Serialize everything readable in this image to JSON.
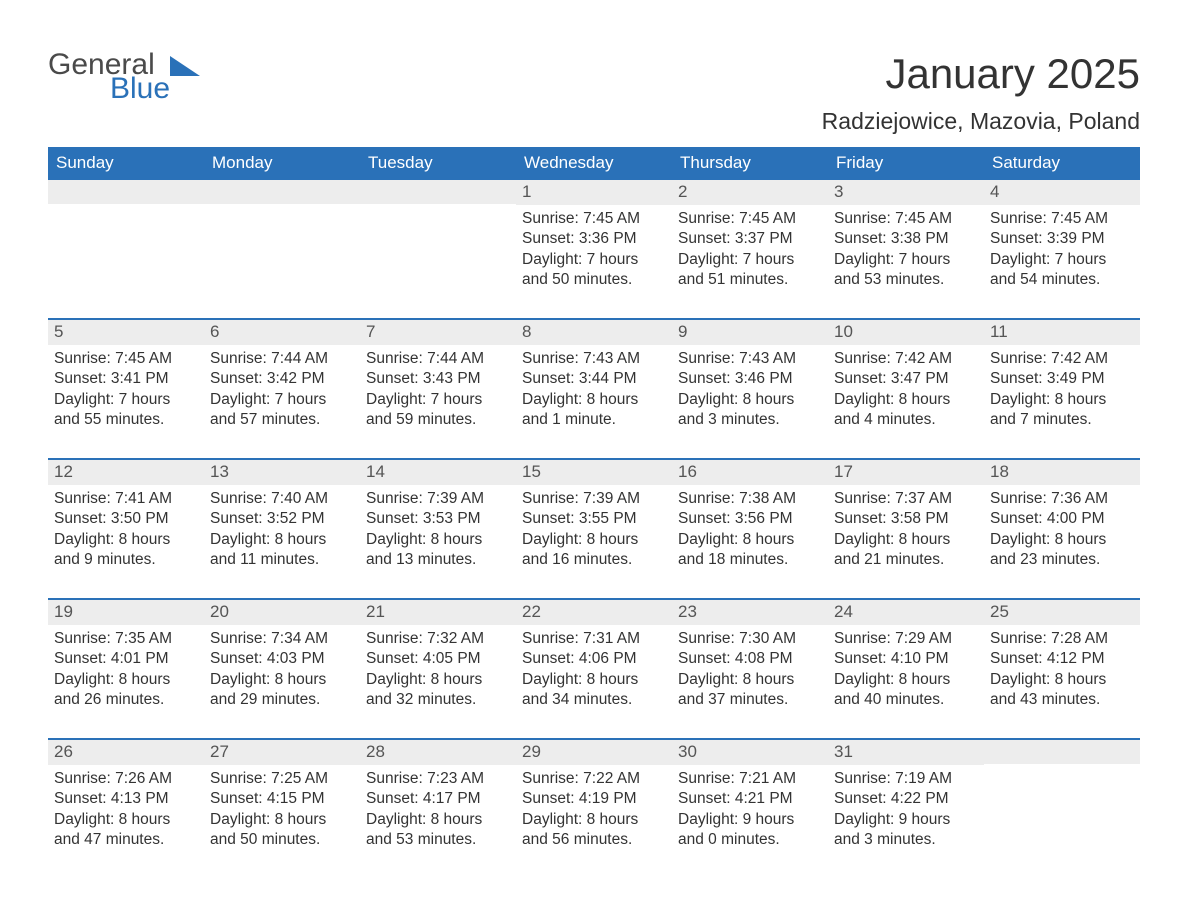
{
  "brand": {
    "general": "General",
    "blue": "Blue",
    "logo_color": "#2a71b8",
    "logo_text_color": "#4a4a4a"
  },
  "header": {
    "title": "January 2025",
    "location": "Radziejowice, Mazovia, Poland",
    "title_color": "#333333",
    "title_fontsize": 42,
    "location_fontsize": 23
  },
  "calendar": {
    "type": "table",
    "header_bg": "#2a71b8",
    "header_fg": "#ffffff",
    "daynum_bg": "#ededed",
    "daynum_fg": "#555555",
    "week_separator_color": "#2a71b8",
    "body_text_color": "#333333",
    "background_color": "#ffffff",
    "columns": [
      "Sunday",
      "Monday",
      "Tuesday",
      "Wednesday",
      "Thursday",
      "Friday",
      "Saturday"
    ],
    "weeks": [
      [
        {
          "day": "",
          "sunrise": "",
          "sunset": "",
          "daylight": ""
        },
        {
          "day": "",
          "sunrise": "",
          "sunset": "",
          "daylight": ""
        },
        {
          "day": "",
          "sunrise": "",
          "sunset": "",
          "daylight": ""
        },
        {
          "day": "1",
          "sunrise": "Sunrise: 7:45 AM",
          "sunset": "Sunset: 3:36 PM",
          "daylight": "Daylight: 7 hours and 50 minutes."
        },
        {
          "day": "2",
          "sunrise": "Sunrise: 7:45 AM",
          "sunset": "Sunset: 3:37 PM",
          "daylight": "Daylight: 7 hours and 51 minutes."
        },
        {
          "day": "3",
          "sunrise": "Sunrise: 7:45 AM",
          "sunset": "Sunset: 3:38 PM",
          "daylight": "Daylight: 7 hours and 53 minutes."
        },
        {
          "day": "4",
          "sunrise": "Sunrise: 7:45 AM",
          "sunset": "Sunset: 3:39 PM",
          "daylight": "Daylight: 7 hours and 54 minutes."
        }
      ],
      [
        {
          "day": "5",
          "sunrise": "Sunrise: 7:45 AM",
          "sunset": "Sunset: 3:41 PM",
          "daylight": "Daylight: 7 hours and 55 minutes."
        },
        {
          "day": "6",
          "sunrise": "Sunrise: 7:44 AM",
          "sunset": "Sunset: 3:42 PM",
          "daylight": "Daylight: 7 hours and 57 minutes."
        },
        {
          "day": "7",
          "sunrise": "Sunrise: 7:44 AM",
          "sunset": "Sunset: 3:43 PM",
          "daylight": "Daylight: 7 hours and 59 minutes."
        },
        {
          "day": "8",
          "sunrise": "Sunrise: 7:43 AM",
          "sunset": "Sunset: 3:44 PM",
          "daylight": "Daylight: 8 hours and 1 minute."
        },
        {
          "day": "9",
          "sunrise": "Sunrise: 7:43 AM",
          "sunset": "Sunset: 3:46 PM",
          "daylight": "Daylight: 8 hours and 3 minutes."
        },
        {
          "day": "10",
          "sunrise": "Sunrise: 7:42 AM",
          "sunset": "Sunset: 3:47 PM",
          "daylight": "Daylight: 8 hours and 4 minutes."
        },
        {
          "day": "11",
          "sunrise": "Sunrise: 7:42 AM",
          "sunset": "Sunset: 3:49 PM",
          "daylight": "Daylight: 8 hours and 7 minutes."
        }
      ],
      [
        {
          "day": "12",
          "sunrise": "Sunrise: 7:41 AM",
          "sunset": "Sunset: 3:50 PM",
          "daylight": "Daylight: 8 hours and 9 minutes."
        },
        {
          "day": "13",
          "sunrise": "Sunrise: 7:40 AM",
          "sunset": "Sunset: 3:52 PM",
          "daylight": "Daylight: 8 hours and 11 minutes."
        },
        {
          "day": "14",
          "sunrise": "Sunrise: 7:39 AM",
          "sunset": "Sunset: 3:53 PM",
          "daylight": "Daylight: 8 hours and 13 minutes."
        },
        {
          "day": "15",
          "sunrise": "Sunrise: 7:39 AM",
          "sunset": "Sunset: 3:55 PM",
          "daylight": "Daylight: 8 hours and 16 minutes."
        },
        {
          "day": "16",
          "sunrise": "Sunrise: 7:38 AM",
          "sunset": "Sunset: 3:56 PM",
          "daylight": "Daylight: 8 hours and 18 minutes."
        },
        {
          "day": "17",
          "sunrise": "Sunrise: 7:37 AM",
          "sunset": "Sunset: 3:58 PM",
          "daylight": "Daylight: 8 hours and 21 minutes."
        },
        {
          "day": "18",
          "sunrise": "Sunrise: 7:36 AM",
          "sunset": "Sunset: 4:00 PM",
          "daylight": "Daylight: 8 hours and 23 minutes."
        }
      ],
      [
        {
          "day": "19",
          "sunrise": "Sunrise: 7:35 AM",
          "sunset": "Sunset: 4:01 PM",
          "daylight": "Daylight: 8 hours and 26 minutes."
        },
        {
          "day": "20",
          "sunrise": "Sunrise: 7:34 AM",
          "sunset": "Sunset: 4:03 PM",
          "daylight": "Daylight: 8 hours and 29 minutes."
        },
        {
          "day": "21",
          "sunrise": "Sunrise: 7:32 AM",
          "sunset": "Sunset: 4:05 PM",
          "daylight": "Daylight: 8 hours and 32 minutes."
        },
        {
          "day": "22",
          "sunrise": "Sunrise: 7:31 AM",
          "sunset": "Sunset: 4:06 PM",
          "daylight": "Daylight: 8 hours and 34 minutes."
        },
        {
          "day": "23",
          "sunrise": "Sunrise: 7:30 AM",
          "sunset": "Sunset: 4:08 PM",
          "daylight": "Daylight: 8 hours and 37 minutes."
        },
        {
          "day": "24",
          "sunrise": "Sunrise: 7:29 AM",
          "sunset": "Sunset: 4:10 PM",
          "daylight": "Daylight: 8 hours and 40 minutes."
        },
        {
          "day": "25",
          "sunrise": "Sunrise: 7:28 AM",
          "sunset": "Sunset: 4:12 PM",
          "daylight": "Daylight: 8 hours and 43 minutes."
        }
      ],
      [
        {
          "day": "26",
          "sunrise": "Sunrise: 7:26 AM",
          "sunset": "Sunset: 4:13 PM",
          "daylight": "Daylight: 8 hours and 47 minutes."
        },
        {
          "day": "27",
          "sunrise": "Sunrise: 7:25 AM",
          "sunset": "Sunset: 4:15 PM",
          "daylight": "Daylight: 8 hours and 50 minutes."
        },
        {
          "day": "28",
          "sunrise": "Sunrise: 7:23 AM",
          "sunset": "Sunset: 4:17 PM",
          "daylight": "Daylight: 8 hours and 53 minutes."
        },
        {
          "day": "29",
          "sunrise": "Sunrise: 7:22 AM",
          "sunset": "Sunset: 4:19 PM",
          "daylight": "Daylight: 8 hours and 56 minutes."
        },
        {
          "day": "30",
          "sunrise": "Sunrise: 7:21 AM",
          "sunset": "Sunset: 4:21 PM",
          "daylight": "Daylight: 9 hours and 0 minutes."
        },
        {
          "day": "31",
          "sunrise": "Sunrise: 7:19 AM",
          "sunset": "Sunset: 4:22 PM",
          "daylight": "Daylight: 9 hours and 3 minutes."
        },
        {
          "day": "",
          "sunrise": "",
          "sunset": "",
          "daylight": ""
        }
      ]
    ]
  }
}
